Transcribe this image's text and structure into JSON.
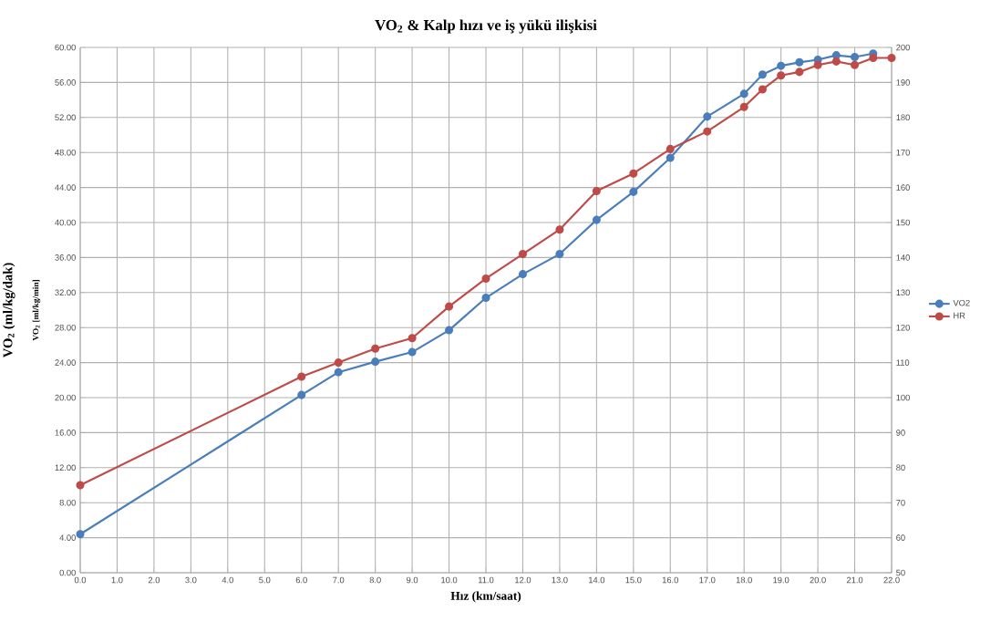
{
  "chart_data": {
    "type": "line",
    "title": "VO$_{2}$ & Kalp hızı ve iş yükü ilişkisi",
    "xlabel": "Hız (km/saat)",
    "ylabel": "VO$_{2}$ (ml/kg/dak)",
    "annotations": [
      "VO$_{2}$ [ml/kg/min]"
    ],
    "x": [
      0,
      6,
      7,
      8,
      9,
      10,
      11,
      12,
      13,
      14,
      15,
      16,
      17,
      18,
      18.5,
      19,
      19.5,
      20,
      20.5,
      21,
      21.5,
      22
    ],
    "series": [
      {
        "name": "VO2",
        "color": "#4a7ebb",
        "axis": "y",
        "values": [
          4.4,
          20.3,
          22.9,
          24.1,
          25.2,
          27.7,
          31.4,
          34.1,
          36.4,
          40.3,
          43.5,
          47.4,
          52.1,
          54.7,
          56.9,
          57.9,
          58.3,
          58.6,
          59.1,
          58.9,
          59.3,
          null
        ]
      },
      {
        "name": "HR",
        "color": "#be4b48",
        "axis": "y2",
        "values": [
          75,
          106,
          110,
          114,
          117,
          126,
          134,
          141,
          148,
          159,
          164,
          171,
          176,
          183,
          188,
          192,
          193,
          195,
          196,
          195,
          197,
          197
        ]
      }
    ],
    "xlim": [
      0,
      22
    ],
    "xticks": [
      {
        "value": 0,
        "label": "0.0"
      },
      {
        "value": 1,
        "label": "1.0"
      },
      {
        "value": 2,
        "label": "2.0"
      },
      {
        "value": 3,
        "label": "3.0"
      },
      {
        "value": 4,
        "label": "4.0"
      },
      {
        "value": 5,
        "label": "5.0"
      },
      {
        "value": 6,
        "label": "6.0"
      },
      {
        "value": 7,
        "label": "7.0"
      },
      {
        "value": 8,
        "label": "8.0"
      },
      {
        "value": 9,
        "label": "9.0"
      },
      {
        "value": 10,
        "label": "10.0"
      },
      {
        "value": 11,
        "label": "11.0"
      },
      {
        "value": 12,
        "label": "12.0"
      },
      {
        "value": 13,
        "label": "13.0"
      },
      {
        "value": 14,
        "label": "14.0"
      },
      {
        "value": 15,
        "label": "15.0"
      },
      {
        "value": 16,
        "label": "16.0"
      },
      {
        "value": 17,
        "label": "17.0"
      },
      {
        "value": 18,
        "label": "18.0"
      },
      {
        "value": 19,
        "label": "19.0"
      },
      {
        "value": 20,
        "label": "20.0"
      },
      {
        "value": 21,
        "label": "21.0"
      },
      {
        "value": 22,
        "label": "22.0"
      }
    ],
    "ylim": [
      0,
      60
    ],
    "yticks": [
      {
        "value": 0,
        "label": "0.00"
      },
      {
        "value": 4,
        "label": "4.00"
      },
      {
        "value": 8,
        "label": "8.00"
      },
      {
        "value": 12,
        "label": "12.00"
      },
      {
        "value": 16,
        "label": "16.00"
      },
      {
        "value": 20,
        "label": "20.00"
      },
      {
        "value": 24,
        "label": "24.00"
      },
      {
        "value": 28,
        "label": "28.00"
      },
      {
        "value": 32,
        "label": "32.00"
      },
      {
        "value": 36,
        "label": "36.00"
      },
      {
        "value": 40,
        "label": "40.00"
      },
      {
        "value": 44,
        "label": "44.00"
      },
      {
        "value": 48,
        "label": "48.00"
      },
      {
        "value": 52,
        "label": "52.00"
      },
      {
        "value": 56,
        "label": "56.00"
      },
      {
        "value": 60,
        "label": "60.00"
      }
    ],
    "y2lim": [
      50,
      200
    ],
    "y2ticks": [
      50,
      60,
      70,
      80,
      90,
      100,
      110,
      120,
      130,
      140,
      150,
      160,
      170,
      180,
      190,
      200
    ],
    "grid": true,
    "legend": "right",
    "marker": "circle",
    "line_style": "solid"
  }
}
